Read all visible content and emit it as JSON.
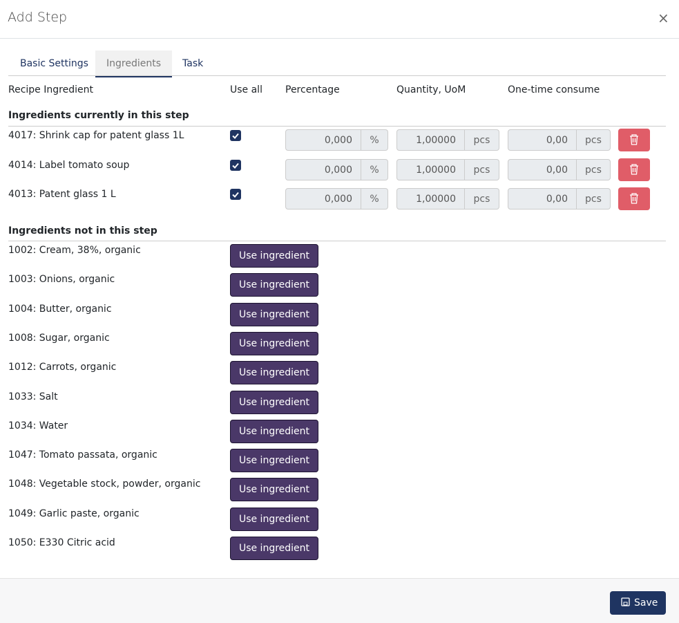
{
  "header": {
    "title": "Add Step",
    "close": "×"
  },
  "tabs": [
    "Basic Settings",
    "Ingredients",
    "Task"
  ],
  "columns": [
    "Recipe Ingredient",
    "Use all",
    "Percentage",
    "Quantity, UoM",
    "One-time consume"
  ],
  "current": {
    "title": "Ingredients currently in this step",
    "rows": [
      {
        "name": "4017: Shrink cap for patent glass 1L",
        "use_all": true,
        "percentage": "0,000",
        "percentage_unit": "%",
        "quantity": "1,00000",
        "quantity_unit": "pcs",
        "consume": "0,00",
        "consume_unit": "pcs"
      },
      {
        "name": "4014: Label tomato soup",
        "use_all": true,
        "percentage": "0,000",
        "percentage_unit": "%",
        "quantity": "1,00000",
        "quantity_unit": "pcs",
        "consume": "0,00",
        "consume_unit": "pcs"
      },
      {
        "name": "4013: Patent glass 1 L",
        "use_all": true,
        "percentage": "0,000",
        "percentage_unit": "%",
        "quantity": "1,00000",
        "quantity_unit": "pcs",
        "consume": "0,00",
        "consume_unit": "pcs"
      }
    ]
  },
  "not_in_step": {
    "title": "Ingredients not in this step",
    "button": "Use ingredient",
    "items": [
      "1002: Cream, 38%, organic",
      "1003: Onions, organic",
      "1004: Butter, organic",
      "1008: Sugar, organic",
      "1012: Carrots, organic",
      "1033: Salt",
      "1034: Water",
      "1047: Tomato passata, organic",
      "1048: Vegetable stock, powder, organic",
      "1049: Garlic paste, organic",
      "1050: E330 Citric acid"
    ]
  },
  "footer": {
    "save": "Save"
  }
}
